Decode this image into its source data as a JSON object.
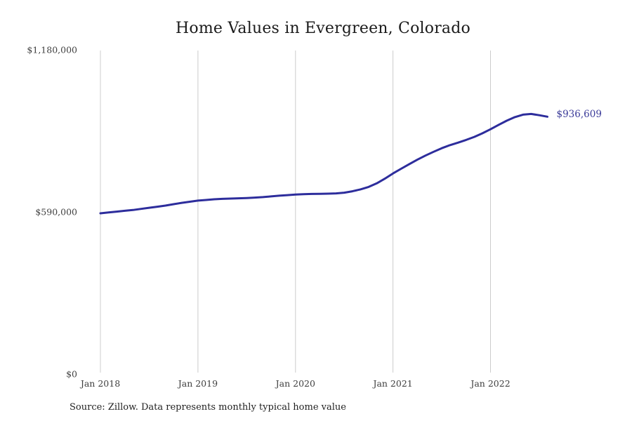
{
  "title": "Home Values in Evergreen, Colorado",
  "source_note": "Source: Zillow. Data represents monthly typical home value",
  "colors": {
    "line": "#2d2d9c",
    "end_label": "#3b3b99",
    "gridline": "#cccccc",
    "axis_text": "#3e3e3e",
    "title_text": "#1b1b1b"
  },
  "chart_data": {
    "type": "line",
    "title": "Home Values in Evergreen, Colorado",
    "xlabel": "",
    "ylabel": "",
    "ylim": [
      0,
      1180000
    ],
    "grid": "vertical-only",
    "legend": "none",
    "x": [
      "2018-01",
      "2018-02",
      "2018-03",
      "2018-04",
      "2018-05",
      "2018-06",
      "2018-07",
      "2018-08",
      "2018-09",
      "2018-10",
      "2018-11",
      "2018-12",
      "2019-01",
      "2019-02",
      "2019-03",
      "2019-04",
      "2019-05",
      "2019-06",
      "2019-07",
      "2019-08",
      "2019-09",
      "2019-10",
      "2019-11",
      "2019-12",
      "2020-01",
      "2020-02",
      "2020-03",
      "2020-04",
      "2020-05",
      "2020-06",
      "2020-07",
      "2020-08",
      "2020-09",
      "2020-10",
      "2020-11",
      "2020-12",
      "2021-01",
      "2021-02",
      "2021-03",
      "2021-04",
      "2021-05",
      "2021-06",
      "2021-07",
      "2021-08",
      "2021-09",
      "2021-10",
      "2021-11",
      "2021-12",
      "2022-01",
      "2022-02",
      "2022-03",
      "2022-04",
      "2022-05",
      "2022-06",
      "2022-07",
      "2022-08"
    ],
    "values": [
      585000,
      588000,
      591000,
      594000,
      597000,
      601000,
      605000,
      609000,
      613000,
      618000,
      623000,
      627000,
      631000,
      633500,
      636000,
      637500,
      638500,
      639500,
      640500,
      642000,
      644000,
      646500,
      649000,
      651000,
      653000,
      654500,
      655500,
      656000,
      656500,
      657500,
      660000,
      665000,
      672000,
      681000,
      694000,
      711000,
      730000,
      747000,
      764000,
      780000,
      795000,
      809000,
      822000,
      833000,
      842000,
      852000,
      863000,
      876000,
      891000,
      907000,
      922000,
      935000,
      944000,
      946500,
      942000,
      936609
    ],
    "x_ticks": [
      {
        "index": 0,
        "label": "Jan 2018"
      },
      {
        "index": 12,
        "label": "Jan 2019"
      },
      {
        "index": 24,
        "label": "Jan 2020"
      },
      {
        "index": 36,
        "label": "Jan 2021"
      },
      {
        "index": 48,
        "label": "Jan 2022"
      }
    ],
    "y_ticks": [
      {
        "value": 0,
        "label": "$0"
      },
      {
        "value": 590000,
        "label": "$590,000"
      },
      {
        "value": 1180000,
        "label": "$1,180,000"
      }
    ],
    "last_value": 936609,
    "last_value_label": "$936,609"
  }
}
